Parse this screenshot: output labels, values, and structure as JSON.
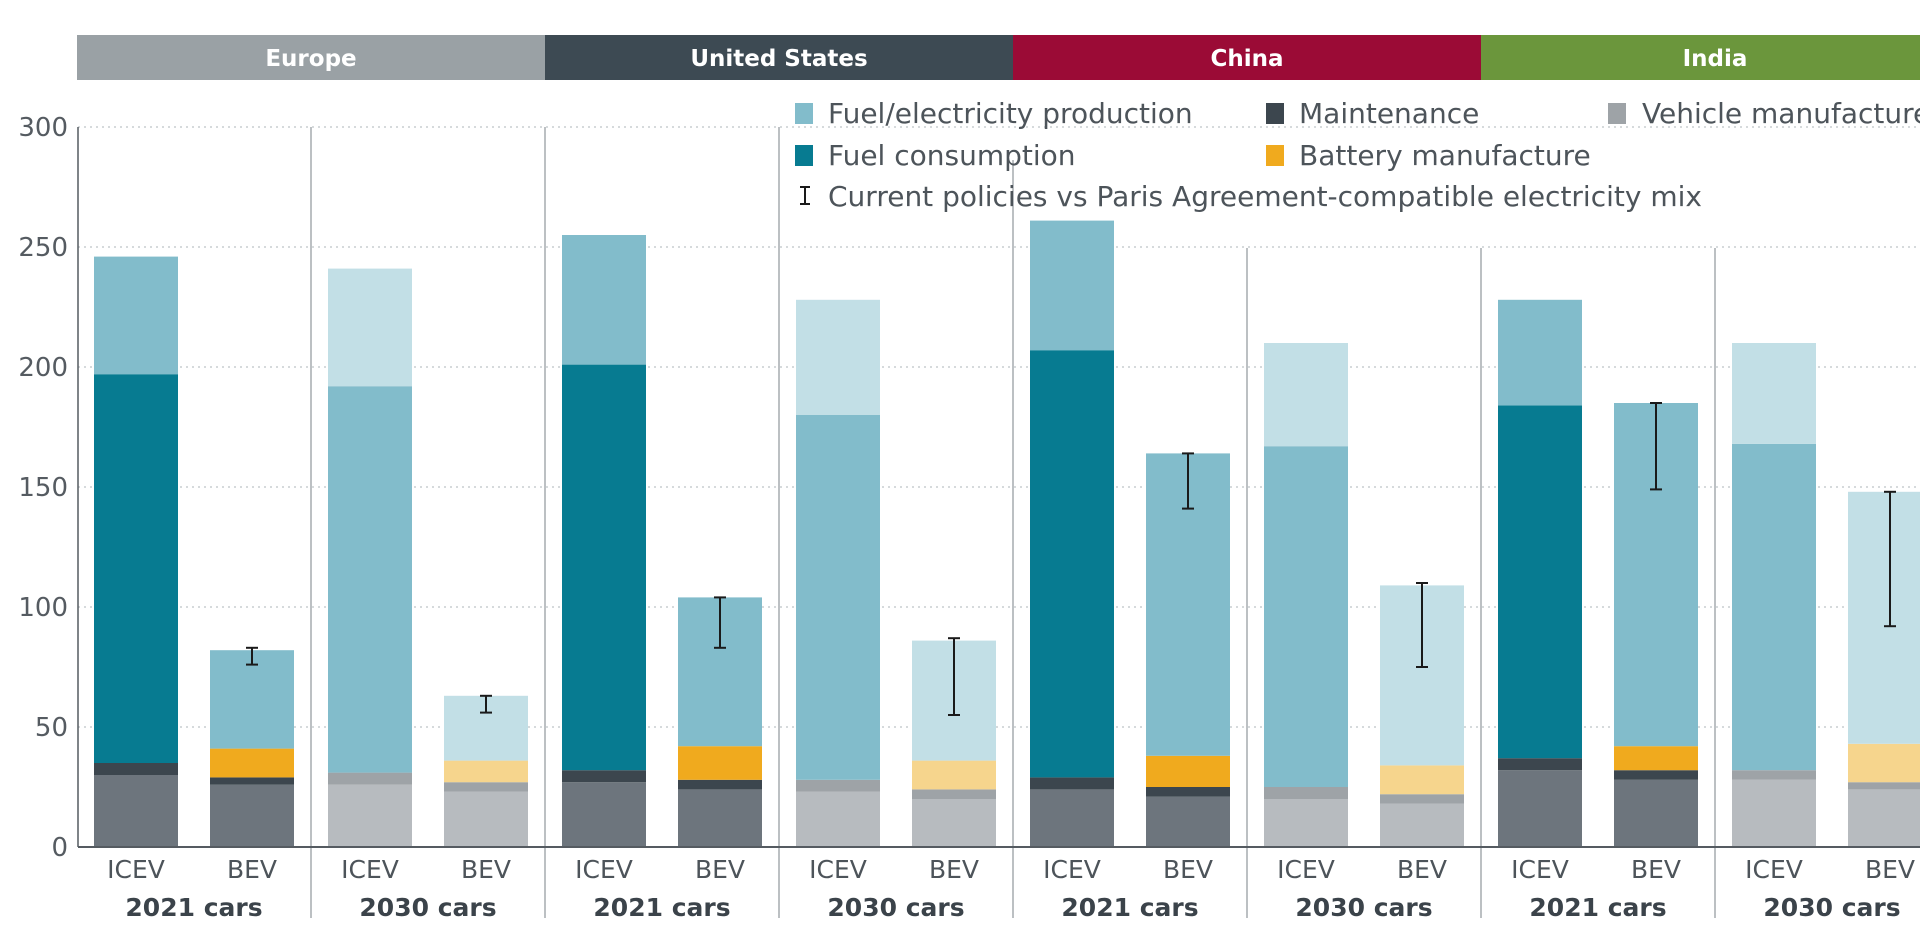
{
  "chart_data": {
    "type": "bar",
    "stacked": true,
    "ylim": [
      0,
      300
    ],
    "yticks": [
      0,
      50,
      100,
      150,
      200,
      250,
      300
    ],
    "grid": true,
    "legend_placement": "top",
    "regions": [
      {
        "name": "Europe",
        "color": "#9aa1a5"
      },
      {
        "name": "United States",
        "color": "#3d4a53"
      },
      {
        "name": "China",
        "color": "#9b0b36"
      },
      {
        "name": "India",
        "color": "#6b963c"
      }
    ],
    "legend": {
      "fuel_production": "Fuel/electricity production",
      "maintenance": "Maintenance",
      "vehicle_manufacture": "Vehicle manufacture",
      "fuel_consumption": "Fuel consumption",
      "battery_manufacture": "Battery manufacture",
      "errorbar": "Current policies vs Paris Agreement-compatible electricity mix"
    },
    "colors": {
      "vehicle_2021": "#6d757d",
      "vehicle_2030": "#b7bbbf",
      "maintenance": "#3c464e",
      "maintenance_2030": "#9ea3a7",
      "battery_2021": "#f0aa1e",
      "battery_2030": "#f6d58d",
      "fuel_consumption": "#077b91",
      "fuel_production_2021": "#82bccb",
      "fuel_production_2030_light": "#c2dfe6"
    },
    "group_labels": [
      "2021 cars",
      "2030 cars"
    ],
    "bars": [
      {
        "region": "Europe",
        "group": "2021 cars",
        "type": "ICEV",
        "vehicle": 30,
        "maintenance": 5,
        "battery": 0,
        "fuel_consumption": 162,
        "fuel_production": 49,
        "fuel_production_extra": 0,
        "total": 246
      },
      {
        "region": "Europe",
        "group": "2021 cars",
        "type": "BEV",
        "vehicle": 26,
        "maintenance": 3,
        "battery": 12,
        "fuel_consumption": 0,
        "fuel_production": 41,
        "fuel_production_extra": 0,
        "total": 82,
        "error": [
          76,
          83
        ]
      },
      {
        "region": "Europe",
        "group": "2030 cars",
        "type": "ICEV",
        "vehicle": 26,
        "maintenance": 5,
        "battery": 0,
        "fuel_consumption": 0,
        "fuel_production": 161,
        "fuel_production_extra": 49,
        "total": 241
      },
      {
        "region": "Europe",
        "group": "2030 cars",
        "type": "BEV",
        "vehicle": 23,
        "maintenance": 4,
        "battery": 9,
        "fuel_consumption": 0,
        "fuel_production": 0,
        "fuel_production_extra": 27,
        "total": 63,
        "error": [
          56,
          63
        ]
      },
      {
        "region": "United States",
        "group": "2021 cars",
        "type": "ICEV",
        "vehicle": 27,
        "maintenance": 5,
        "battery": 0,
        "fuel_consumption": 169,
        "fuel_production": 54,
        "fuel_production_extra": 0,
        "total": 255
      },
      {
        "region": "United States",
        "group": "2021 cars",
        "type": "BEV",
        "vehicle": 24,
        "maintenance": 4,
        "battery": 14,
        "fuel_consumption": 0,
        "fuel_production": 62,
        "fuel_production_extra": 0,
        "total": 104,
        "error": [
          83,
          104
        ]
      },
      {
        "region": "United States",
        "group": "2030 cars",
        "type": "ICEV",
        "vehicle": 23,
        "maintenance": 5,
        "battery": 0,
        "fuel_consumption": 0,
        "fuel_production": 152,
        "fuel_production_extra": 48,
        "total": 228
      },
      {
        "region": "United States",
        "group": "2030 cars",
        "type": "BEV",
        "vehicle": 20,
        "maintenance": 4,
        "battery": 12,
        "fuel_consumption": 0,
        "fuel_production": 0,
        "fuel_production_extra": 50,
        "total": 86,
        "error": [
          55,
          87
        ]
      },
      {
        "region": "China",
        "group": "2021 cars",
        "type": "ICEV",
        "vehicle": 24,
        "maintenance": 5,
        "battery": 0,
        "fuel_consumption": 178,
        "fuel_production": 54,
        "fuel_production_extra": 0,
        "total": 261
      },
      {
        "region": "China",
        "group": "2021 cars",
        "type": "BEV",
        "vehicle": 21,
        "maintenance": 4,
        "battery": 13,
        "fuel_consumption": 0,
        "fuel_production": 126,
        "fuel_production_extra": 0,
        "total": 164,
        "error": [
          141,
          164
        ]
      },
      {
        "region": "China",
        "group": "2030 cars",
        "type": "ICEV",
        "vehicle": 20,
        "maintenance": 5,
        "battery": 0,
        "fuel_consumption": 0,
        "fuel_production": 142,
        "fuel_production_extra": 43,
        "total": 210
      },
      {
        "region": "China",
        "group": "2030 cars",
        "type": "BEV",
        "vehicle": 18,
        "maintenance": 4,
        "battery": 12,
        "fuel_consumption": 0,
        "fuel_production": 0,
        "fuel_production_extra": 75,
        "total": 109,
        "error": [
          75,
          110
        ]
      },
      {
        "region": "India",
        "group": "2021 cars",
        "type": "ICEV",
        "vehicle": 32,
        "maintenance": 5,
        "battery": 0,
        "fuel_consumption": 147,
        "fuel_production": 44,
        "fuel_production_extra": 0,
        "total": 228
      },
      {
        "region": "India",
        "group": "2021 cars",
        "type": "BEV",
        "vehicle": 28,
        "maintenance": 4,
        "battery": 10,
        "fuel_consumption": 0,
        "fuel_production": 143,
        "fuel_production_extra": 0,
        "total": 185,
        "error": [
          149,
          185
        ]
      },
      {
        "region": "India",
        "group": "2030 cars",
        "type": "ICEV",
        "vehicle": 28,
        "maintenance": 4,
        "battery": 0,
        "fuel_consumption": 0,
        "fuel_production": 136,
        "fuel_production_extra": 42,
        "total": 210
      },
      {
        "region": "India",
        "group": "2030 cars",
        "type": "BEV",
        "vehicle": 24,
        "maintenance": 3,
        "battery": 16,
        "fuel_consumption": 0,
        "fuel_production": 0,
        "fuel_production_extra": 105,
        "total": 148,
        "error": [
          92,
          148
        ]
      }
    ]
  }
}
